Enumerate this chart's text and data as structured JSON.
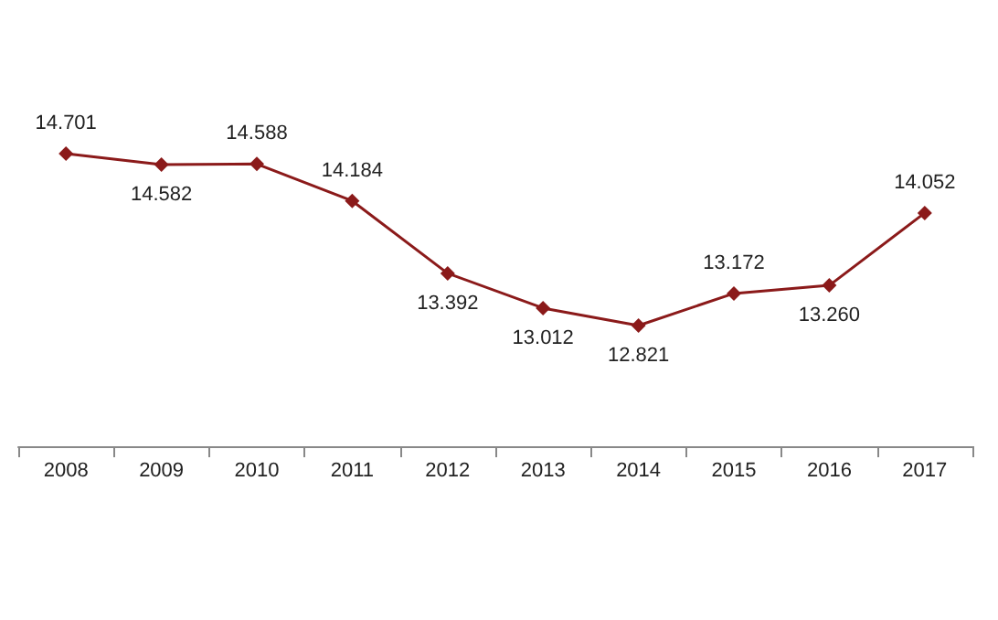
{
  "chart_data": {
    "type": "line",
    "categories": [
      "2008",
      "2009",
      "2010",
      "2011",
      "2012",
      "2013",
      "2014",
      "2015",
      "2016",
      "2017"
    ],
    "series": [
      {
        "color": "#8b1a1a",
        "values": [
          14.701,
          14.582,
          14.588,
          14.184,
          13.392,
          13.012,
          12.821,
          13.172,
          13.26,
          14.052
        ],
        "value_labels": [
          "14.701",
          "14.582",
          "14.588",
          "14.184",
          "13.392",
          "13.012",
          "12.821",
          "13.172",
          "13.260",
          "14.052"
        ]
      }
    ],
    "tick_labels": "x",
    "marker": "diamond",
    "line_style": "solid"
  }
}
